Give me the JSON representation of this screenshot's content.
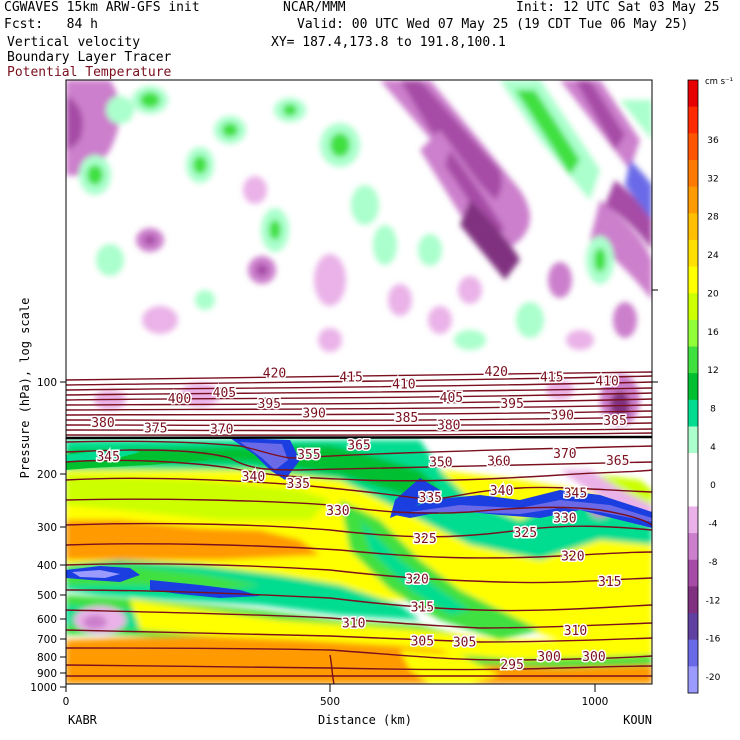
{
  "header": {
    "left_line1": "CGWAVES 15km ARW-GFS init",
    "left_line2": "Fcst:   84 h",
    "field1": "Vertical velocity",
    "field2": "Boundary Layer Tracer",
    "field3": "Potential Temperature",
    "center_line1": "NCAR/MMM",
    "right_line1": "Init: 12 UTC Sat 03 May 25",
    "right_line2": "Valid: 00 UTC Wed 07 May 25 (19 CDT Tue 06 May 25)",
    "xy_line": "XY= 187.4,173.8 to 191.8,100.1"
  },
  "colors": {
    "theta_line": "#7a0f1e",
    "theta_label": "#7a0f1e",
    "tracer_blue": "#1a3ee0",
    "background": "#ffffff"
  },
  "chart_data": {
    "type": "heatmap",
    "title": "Vertical velocity / Boundary Layer Tracer / Potential Temperature cross section",
    "xlabel": "Distance (km)",
    "ylabel": "Pressure (hPa), log scale",
    "xlim": [
      0,
      1110
    ],
    "ylim": [
      1000,
      30
    ],
    "x_ticks": [
      "0",
      "500",
      "1000"
    ],
    "y_ticks": [
      "100",
      "200",
      "300",
      "400",
      "500",
      "600",
      "700",
      "800",
      "900",
      "1000"
    ],
    "x_start_label": "KABR",
    "x_end_label": "KOUN",
    "colorbar": {
      "unit": "cm s⁻¹",
      "levels": [
        "36",
        "32",
        "28",
        "24",
        "20",
        "16",
        "12",
        "8",
        "4",
        "0",
        "-4",
        "-8",
        "-12",
        "-16",
        "-20"
      ],
      "colors": [
        "#e60000",
        "#ff2a00",
        "#ff5500",
        "#ff7a00",
        "#ff9a00",
        "#ffbf00",
        "#ffe000",
        "#ffff00",
        "#ccff00",
        "#90ff3a",
        "#40e040",
        "#00c030",
        "#00dd90",
        "#aaffcc",
        "#ffffff",
        "#ffffff",
        "#eab2e8",
        "#cc7fcc",
        "#a64ca6",
        "#803080",
        "#6040a0",
        "#6a6ae8",
        "#9a9aff"
      ]
    },
    "theta_contour_labels": [
      {
        "label": "420",
        "x": 395,
        "p": 93
      },
      {
        "label": "415",
        "x": 540,
        "p": 96
      },
      {
        "label": "410",
        "x": 640,
        "p": 101
      },
      {
        "label": "420",
        "x": 815,
        "p": 92
      },
      {
        "label": "415",
        "x": 920,
        "p": 96
      },
      {
        "label": "410",
        "x": 1025,
        "p": 99
      },
      {
        "label": "400",
        "x": 215,
        "p": 113
      },
      {
        "label": "405",
        "x": 300,
        "p": 108
      },
      {
        "label": "395",
        "x": 385,
        "p": 117
      },
      {
        "label": "405",
        "x": 730,
        "p": 112
      },
      {
        "label": "395",
        "x": 845,
        "p": 117
      },
      {
        "label": "390",
        "x": 470,
        "p": 126
      },
      {
        "label": "385",
        "x": 645,
        "p": 130
      },
      {
        "label": "390",
        "x": 940,
        "p": 128
      },
      {
        "label": "385",
        "x": 1040,
        "p": 133
      },
      {
        "label": "380",
        "x": 70,
        "p": 135
      },
      {
        "label": "375",
        "x": 170,
        "p": 141
      },
      {
        "label": "370",
        "x": 295,
        "p": 142
      },
      {
        "label": "380",
        "x": 725,
        "p": 138
      },
      {
        "label": "365",
        "x": 555,
        "p": 160
      },
      {
        "label": "355",
        "x": 460,
        "p": 172
      },
      {
        "label": "345",
        "x": 80,
        "p": 175
      },
      {
        "label": "350",
        "x": 710,
        "p": 182
      },
      {
        "label": "360",
        "x": 820,
        "p": 181
      },
      {
        "label": "370",
        "x": 945,
        "p": 171
      },
      {
        "label": "365",
        "x": 1045,
        "p": 180
      },
      {
        "label": "340",
        "x": 355,
        "p": 203
      },
      {
        "label": "335",
        "x": 440,
        "p": 214
      },
      {
        "label": "335",
        "x": 690,
        "p": 238
      },
      {
        "label": "340",
        "x": 825,
        "p": 226
      },
      {
        "label": "345",
        "x": 965,
        "p": 230
      },
      {
        "label": "330",
        "x": 515,
        "p": 263
      },
      {
        "label": "330",
        "x": 945,
        "p": 278
      },
      {
        "label": "325",
        "x": 680,
        "p": 325
      },
      {
        "label": "325",
        "x": 870,
        "p": 310
      },
      {
        "label": "320",
        "x": 960,
        "p": 370
      },
      {
        "label": "320",
        "x": 665,
        "p": 440
      },
      {
        "label": "315",
        "x": 1030,
        "p": 450
      },
      {
        "label": "315",
        "x": 675,
        "p": 545
      },
      {
        "label": "310",
        "x": 545,
        "p": 615
      },
      {
        "label": "310",
        "x": 965,
        "p": 650
      },
      {
        "label": "305",
        "x": 675,
        "p": 705
      },
      {
        "label": "305",
        "x": 755,
        "p": 710
      },
      {
        "label": "300",
        "x": 915,
        "p": 790
      },
      {
        "label": "300",
        "x": 1000,
        "p": 790
      },
      {
        "label": "295",
        "x": 845,
        "p": 840
      }
    ]
  }
}
